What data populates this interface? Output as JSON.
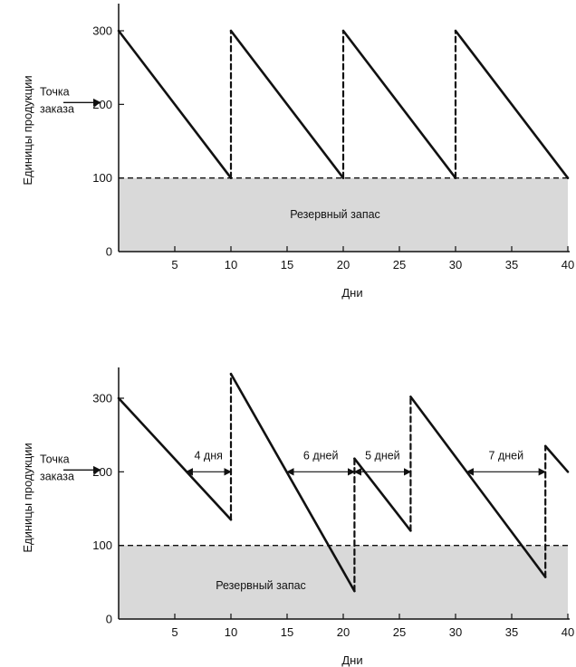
{
  "chart_data": [
    {
      "type": "line",
      "ylabel": "Единицы продукции",
      "xlabel": "Дни",
      "xlim": [
        0,
        40
      ],
      "ylim": [
        0,
        300
      ],
      "x_ticks": [
        5,
        10,
        15,
        20,
        25,
        30,
        35,
        40
      ],
      "y_ticks": [
        0,
        100,
        200,
        300
      ],
      "reorder_label": [
        "Точка",
        "заказа"
      ],
      "reorder_level": 200,
      "safety_stock_level": 100,
      "safety_stock_label": "Резервный запас",
      "series": [
        {
          "values": [
            [
              0,
              300
            ],
            [
              10,
              100
            ],
            [
              10,
              300
            ],
            [
              20,
              100
            ],
            [
              20,
              300
            ],
            [
              30,
              100
            ],
            [
              30,
              300
            ],
            [
              40,
              100
            ]
          ]
        }
      ],
      "lead_time_annotations": []
    },
    {
      "type": "line",
      "ylabel": "Единицы продукции",
      "xlabel": "Дни",
      "xlim": [
        0,
        40
      ],
      "ylim": [
        0,
        300
      ],
      "x_ticks": [
        5,
        10,
        15,
        20,
        25,
        30,
        35,
        40
      ],
      "y_ticks": [
        0,
        100,
        200,
        300
      ],
      "reorder_label": [
        "Точка",
        "заказа"
      ],
      "reorder_level": 200,
      "safety_stock_level": 100,
      "safety_stock_label": "Резервный запас",
      "series": [
        {
          "values": [
            [
              0,
              300
            ],
            [
              10,
              135
            ],
            [
              10,
              333
            ],
            [
              21,
              38
            ],
            [
              21,
              218
            ],
            [
              26,
              120
            ],
            [
              26,
              302
            ],
            [
              38,
              57
            ],
            [
              38,
              235
            ],
            [
              40,
              200
            ]
          ]
        }
      ],
      "lead_time_annotations": [
        {
          "label": "4 дня",
          "x_start": 6,
          "x_end": 10,
          "y": 200
        },
        {
          "label": "6 дней",
          "x_start": 15,
          "x_end": 21,
          "y": 200
        },
        {
          "label": "5 дней",
          "x_start": 21,
          "x_end": 26,
          "y": 200
        },
        {
          "label": "7 дней",
          "x_start": 31,
          "x_end": 38,
          "y": 200
        }
      ]
    }
  ]
}
